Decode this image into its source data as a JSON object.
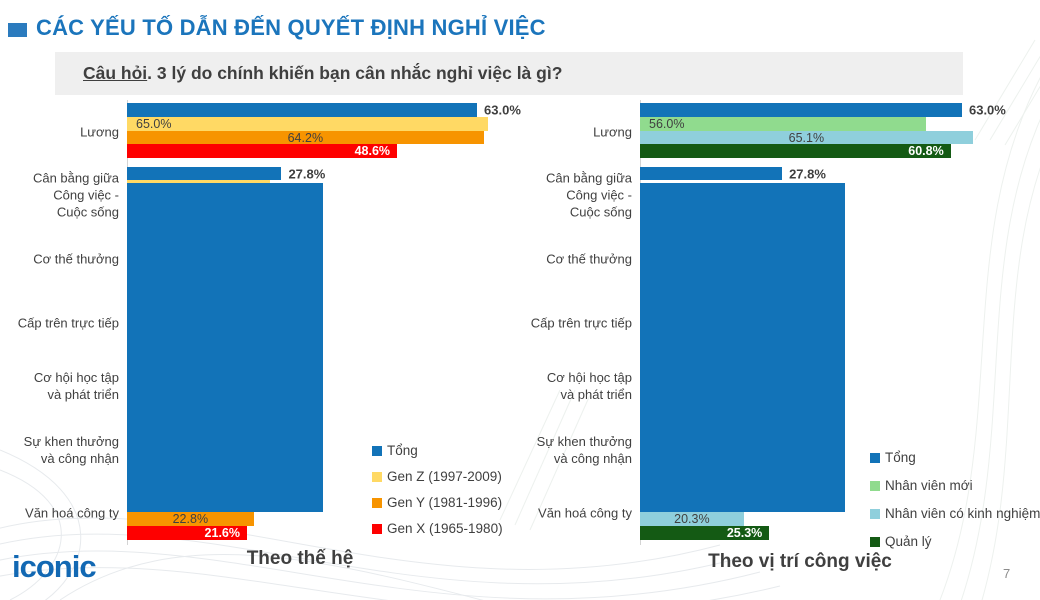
{
  "page": {
    "title": "CÁC YẾU TỐ DẪN ĐẾN QUYẾT ĐỊNH NGHỈ VIỆC",
    "question_label": "Câu hỏi",
    "question_rest": ". 3 lý do chính khiến bạn cân nhắc nghỉ việc là gì?",
    "logo_text": "iconic",
    "page_number": "7",
    "title_color": "#1B75BC"
  },
  "chart_data": [
    {
      "type": "bar",
      "orientation": "horizontal",
      "title": "Theo thế hệ",
      "xlim": [
        0,
        70
      ],
      "axis_labels_visible": false,
      "grid": false,
      "legend_position": "right",
      "categories": [
        [
          "Lương"
        ],
        [
          "Cân bằng giữa",
          "Công việc -",
          "Cuộc sống"
        ],
        [
          "Cơ thế thưởng"
        ],
        [
          "Cấp trên trực tiếp"
        ],
        [
          "Cơ hội học tập",
          "và phát triển"
        ],
        [
          "Sự khen thưởng",
          "và công nhận"
        ],
        [
          "Văn hoá công ty"
        ]
      ],
      "series": [
        {
          "name": "Tổng",
          "color": "#1273B8",
          "values": [
            63.0,
            27.8,
            null,
            null,
            null,
            null,
            null
          ],
          "label_pos": [
            "out",
            "out",
            null,
            null,
            null,
            null,
            null
          ]
        },
        {
          "name": "Gen Z (1997-2009)",
          "color": "#FFD964",
          "values": [
            65.0,
            null,
            null,
            null,
            null,
            null,
            null
          ],
          "label_pos": [
            "in-left",
            null,
            null,
            null,
            null,
            null,
            null
          ]
        },
        {
          "name": "Gen Y (1981-1996)",
          "color": "#F79400",
          "values": [
            64.2,
            null,
            null,
            null,
            null,
            null,
            22.8
          ],
          "label_pos": [
            "in-center",
            null,
            null,
            null,
            null,
            null,
            "in-center"
          ]
        },
        {
          "name": "Gen X (1965-1980)",
          "color": "#FE0000",
          "values": [
            48.6,
            null,
            null,
            null,
            null,
            null,
            21.6
          ],
          "label_pos": [
            "in-right",
            null,
            null,
            null,
            null,
            null,
            "in-right"
          ]
        }
      ],
      "legend": [
        {
          "name": "Tổng",
          "color": "#1273B8"
        },
        {
          "name": "Gen Z (1997-2009)",
          "color": "#FFD964"
        },
        {
          "name": "Gen Y (1981-1996)",
          "color": "#F79400"
        },
        {
          "name": "Gen X (1965-1980)",
          "color": "#FE0000"
        }
      ],
      "artifact_block": {
        "width_pct": 35.3,
        "color": "#1273B8",
        "note": "large blue rectangle covering rows 2-6"
      },
      "sliver": {
        "series": 1,
        "category": 1,
        "width_pct": 25.8
      }
    },
    {
      "type": "bar",
      "orientation": "horizontal",
      "title": "Theo vị trí công việc",
      "xlim": [
        0,
        70
      ],
      "axis_labels_visible": false,
      "grid": false,
      "legend_position": "right",
      "categories": [
        [
          "Lương"
        ],
        [
          "Cân bằng giữa",
          "Công việc -",
          "Cuộc sống"
        ],
        [
          "Cơ thế thưởng"
        ],
        [
          "Cấp trên trực tiếp"
        ],
        [
          "Cơ hội học tập",
          "và phát triển"
        ],
        [
          "Sự khen thưởng",
          "và công nhận"
        ],
        [
          "Văn hoá công ty"
        ]
      ],
      "series": [
        {
          "name": "Tổng",
          "color": "#1273B8",
          "values": [
            63.0,
            27.8,
            null,
            null,
            null,
            null,
            null
          ],
          "label_pos": [
            "out",
            "out",
            null,
            null,
            null,
            null,
            null
          ]
        },
        {
          "name": "Nhân viên mới",
          "color": "#90DB8E",
          "values": [
            56.0,
            null,
            null,
            null,
            null,
            null,
            null
          ],
          "label_pos": [
            "in-left",
            null,
            null,
            null,
            null,
            null,
            null
          ]
        },
        {
          "name": "Nhân viên có kinh nghiệm",
          "color": "#8FCFDC",
          "values": [
            65.1,
            null,
            null,
            null,
            null,
            null,
            20.3
          ],
          "label_pos": [
            "in-center",
            null,
            null,
            null,
            null,
            null,
            "in-center"
          ]
        },
        {
          "name": "Quản lý",
          "color": "#145A14",
          "values": [
            60.8,
            null,
            null,
            null,
            null,
            null,
            25.3
          ],
          "label_pos": [
            "in-right",
            null,
            null,
            null,
            null,
            null,
            "in-right"
          ]
        }
      ],
      "legend": [
        {
          "name": "Tổng",
          "color": "#1273B8"
        },
        {
          "name": "Nhân viên mới",
          "color": "#90DB8E"
        },
        {
          "name": "Nhân viên có kinh nghiệm",
          "color": "#8FCFDC"
        },
        {
          "name": "Quản lý",
          "color": "#145A14"
        }
      ],
      "artifact_block": {
        "width_pct": 40.1,
        "color": "#1273B8",
        "note": "large blue rectangle covering rows 2-6"
      },
      "sliver": null
    }
  ]
}
